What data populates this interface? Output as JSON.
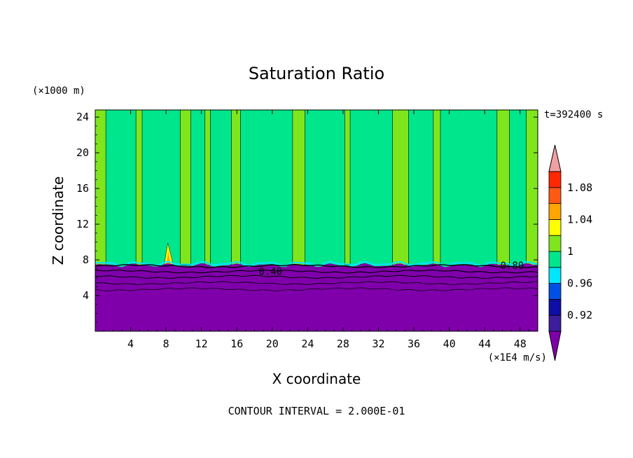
{
  "chart_data": {
    "type": "heatmap",
    "title": "Saturation Ratio",
    "xlabel": "X coordinate",
    "ylabel": "Z coordinate",
    "x_unit": "(×1E4 m/s)",
    "y_unit": "(×1000 m)",
    "time_label": "t=392400 s",
    "footer": "CONTOUR INTERVAL = 2.000E-01",
    "xlim": [
      0,
      50
    ],
    "ylim": [
      0,
      24.8
    ],
    "x_ticks": [
      4,
      8,
      12,
      16,
      20,
      24,
      28,
      32,
      36,
      40,
      44,
      48
    ],
    "y_ticks": [
      4,
      8,
      12,
      16,
      20,
      24
    ],
    "contour_interval": 0.2,
    "contour_labels": [
      {
        "text": "0.40",
        "x": 19.8,
        "y": 6.3
      },
      {
        "text": "0.80",
        "x": 47.1,
        "y": 7.0
      }
    ],
    "colorbar": {
      "levels": [
        0.9,
        0.92,
        0.94,
        0.96,
        0.98,
        1.0,
        1.02,
        1.04,
        1.06,
        1.08,
        1.1
      ],
      "colors": [
        "#7F00AA",
        "#3C1E9A",
        "#0E0EA5",
        "#0050E6",
        "#00E6FF",
        "#00E68C",
        "#7FE61E",
        "#FFFF00",
        "#FFA500",
        "#FF5A14",
        "#FF2800",
        "#F0A0A0"
      ],
      "tick_labels": [
        "0.92",
        "0.96",
        "1",
        "1.04",
        "1.08"
      ],
      "tick_values": [
        0.92,
        0.96,
        1.0,
        1.04,
        1.08
      ]
    },
    "regions": {
      "dry_layer_top": 7.4,
      "dry_layer_value": "<0.90",
      "upper_default_value": "1.00-1.02",
      "supersaturated_columns_x": [
        [
          0,
          1.2
        ],
        [
          4.6,
          5.3
        ],
        [
          9.6,
          10.8
        ],
        [
          12.4,
          13.0
        ],
        [
          15.4,
          16.4
        ],
        [
          22.3,
          23.7
        ],
        [
          28.2,
          28.8
        ],
        [
          33.6,
          35.4
        ],
        [
          38.2,
          39.0
        ],
        [
          45.4,
          46.8
        ],
        [
          48.7,
          50
        ]
      ]
    }
  }
}
